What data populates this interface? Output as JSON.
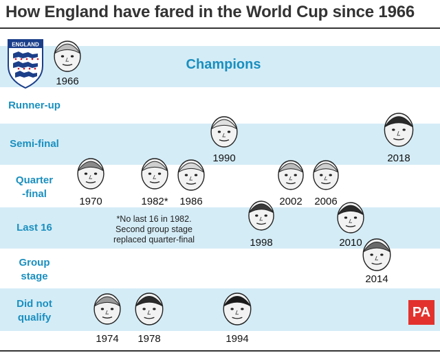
{
  "title": "How England have fared in the World Cup since 1966",
  "champions_label": "Champions",
  "rows": [
    {
      "key": "champions",
      "label": ""
    },
    {
      "key": "runner_up",
      "label": "Runner-up"
    },
    {
      "key": "semi_final",
      "label": "Semi-final"
    },
    {
      "key": "quarter_final",
      "label": "Quarter\n-final"
    },
    {
      "key": "last_16",
      "label": "Last 16"
    },
    {
      "key": "group_stage",
      "label": "Group\nstage"
    },
    {
      "key": "did_not_qualify",
      "label": "Did not\nqualify"
    }
  ],
  "note": "*No last 16 in 1982.\nSecond group stage\nreplaced quarter-final",
  "crest_label": "ENGLAND",
  "source_logo": "PA",
  "colors": {
    "band": "#d4ecf6",
    "label": "#1a8fbf",
    "pa_red": "#e3322d",
    "crest_blue": "#1c3f8a",
    "crest_red": "#c8102e"
  },
  "chart_data": {
    "type": "scatter",
    "title": "How England have fared in the World Cup since 1966",
    "y_categories": [
      "Champions",
      "Runner-up",
      "Semi-final",
      "Quarter-final",
      "Last 16",
      "Group stage",
      "Did not qualify"
    ],
    "points": [
      {
        "year": "1966",
        "stage": "Champions"
      },
      {
        "year": "1970",
        "stage": "Quarter-final"
      },
      {
        "year": "1974",
        "stage": "Did not qualify"
      },
      {
        "year": "1978",
        "stage": "Did not qualify"
      },
      {
        "year": "1982*",
        "stage": "Quarter-final"
      },
      {
        "year": "1986",
        "stage": "Quarter-final"
      },
      {
        "year": "1990",
        "stage": "Semi-final"
      },
      {
        "year": "1994",
        "stage": "Did not qualify"
      },
      {
        "year": "1998",
        "stage": "Last 16"
      },
      {
        "year": "2002",
        "stage": "Quarter-final"
      },
      {
        "year": "2006",
        "stage": "Quarter-final"
      },
      {
        "year": "2010",
        "stage": "Last 16"
      },
      {
        "year": "2014",
        "stage": "Group stage"
      },
      {
        "year": "2018",
        "stage": "Semi-final"
      }
    ]
  }
}
